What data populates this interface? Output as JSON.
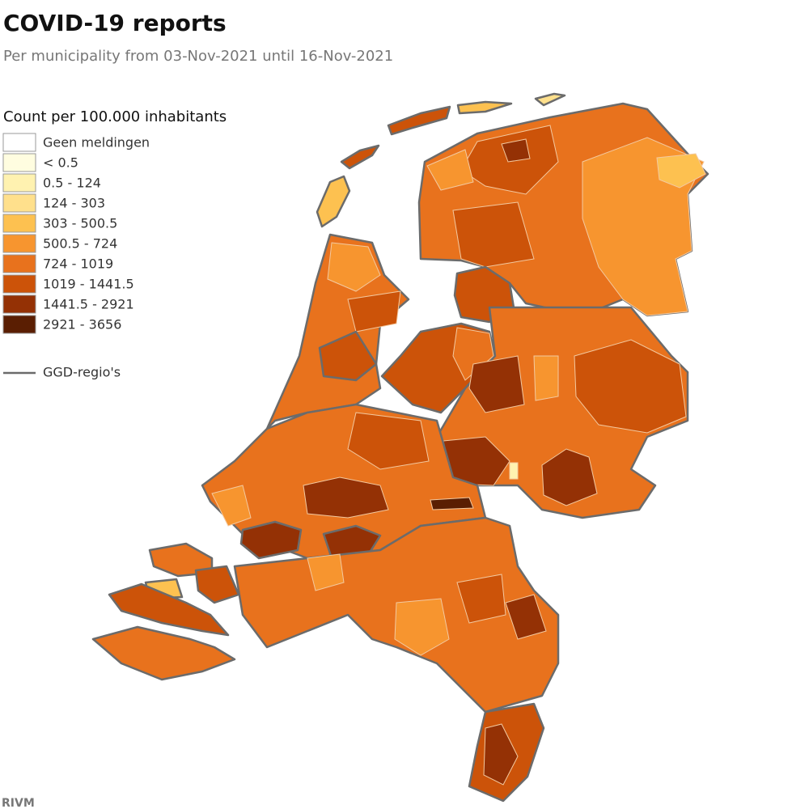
{
  "header": {
    "title": "COVID-19 reports",
    "subtitle": "Per municipality from 03-Nov-2021 until 16-Nov-2021"
  },
  "legend": {
    "title": "Count per 100.000 inhabitants",
    "items": [
      {
        "label": "Geen meldingen",
        "color": "#ffffff"
      },
      {
        "label": "< 0.5",
        "color": "#fffde0"
      },
      {
        "label": "0.5 - 124",
        "color": "#fff2b0"
      },
      {
        "label": "124 - 303",
        "color": "#ffe08c"
      },
      {
        "label": "303 - 500.5",
        "color": "#fdc150"
      },
      {
        "label": "500.5 - 724",
        "color": "#f7952f"
      },
      {
        "label": "724 - 1019",
        "color": "#e8721d"
      },
      {
        "label": "1019 - 1441.5",
        "color": "#cc5309"
      },
      {
        "label": "1441.5 - 2921",
        "color": "#943105"
      },
      {
        "label": "2921 - 3656",
        "color": "#5a1e02"
      }
    ],
    "line_label": "GGD-regio's"
  },
  "source": "RIVM"
}
